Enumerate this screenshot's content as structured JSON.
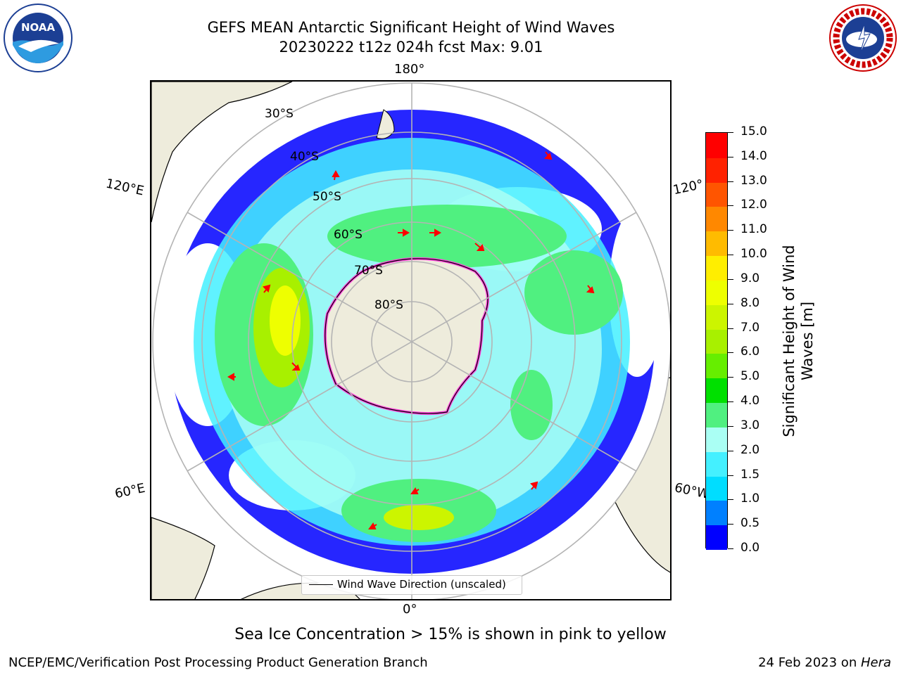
{
  "header": {
    "title_line1": "GEFS MEAN Antarctic Significant Height of Wind Waves",
    "title_line2": "20230222 t12z 024h fcst   Max: 9.01"
  },
  "logos": {
    "left": "noaa-logo",
    "left_text": "NOAA",
    "right": "national-weather-service-logo",
    "right_text": "NATIONAL WEATHER SERVICE"
  },
  "map": {
    "projection": "south-polar-stereographic",
    "longitude_labels": {
      "top": "180°",
      "bottom": "0°",
      "upper_left": "120°E",
      "upper_right": "120°",
      "lower_left": "60°E",
      "lower_right": "60°W"
    },
    "latitude_labels": [
      "30°S",
      "40°S",
      "50°S",
      "60°S",
      "70°S",
      "80°S"
    ],
    "land_color": "#eeecdc",
    "graticule_color": "#b4b4b4",
    "sea_ice_color": "#ff44dd",
    "arrow_color": "#ff0000"
  },
  "legend": {
    "label": "Wind Wave Direction (unscaled)"
  },
  "colorbar": {
    "title_line1": "Significant Height of Wind",
    "title_line2": "Waves [m]",
    "ticks": [
      "0.0",
      "0.5",
      "1.0",
      "1.5",
      "2.0",
      "3.0",
      "4.0",
      "5.0",
      "6.0",
      "7.0",
      "8.0",
      "9.0",
      "10.0",
      "11.0",
      "12.0",
      "13.0",
      "14.0",
      "15.0"
    ],
    "colors": [
      "#0000ff",
      "#0080ff",
      "#00ddff",
      "#44f0ff",
      "#aafff4",
      "#50f080",
      "#00e000",
      "#66ee00",
      "#a8f000",
      "#ccf500",
      "#eeff00",
      "#ffee00",
      "#ffbb00",
      "#ff8800",
      "#ff5500",
      "#ff2200",
      "#ff0000"
    ]
  },
  "notes": {
    "sea_ice": "Sea Ice Concentration > 15% is shown in pink to yellow"
  },
  "footer": {
    "left": "NCEP/EMC/Verification Post Processing Product Generation Branch",
    "right_prefix": "24 Feb 2023 on ",
    "right_machine": "Hera"
  }
}
